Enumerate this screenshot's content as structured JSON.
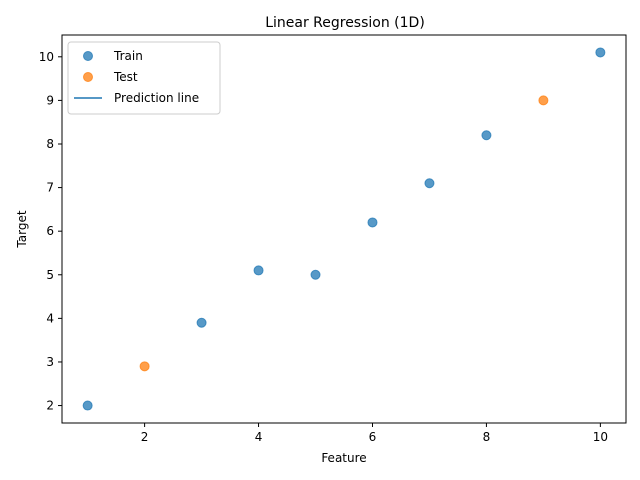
{
  "chart_data": {
    "type": "scatter",
    "title": "Linear Regression (1D)",
    "xlabel": "Feature",
    "ylabel": "Target",
    "xlim": [
      0.55,
      10.45
    ],
    "ylim": [
      1.6,
      10.5
    ],
    "xticks": [
      2,
      4,
      6,
      8,
      10
    ],
    "yticks": [
      2,
      3,
      4,
      5,
      6,
      7,
      8,
      9,
      10
    ],
    "grid": false,
    "legend_position": "top-left",
    "series": [
      {
        "name": "Train",
        "kind": "scatter",
        "color": "#1f77b4",
        "points": [
          {
            "x": 1,
            "y": 2.0
          },
          {
            "x": 3,
            "y": 3.9
          },
          {
            "x": 4,
            "y": 5.1
          },
          {
            "x": 5,
            "y": 5.0
          },
          {
            "x": 6,
            "y": 6.2
          },
          {
            "x": 7,
            "y": 7.1
          },
          {
            "x": 8,
            "y": 8.2
          },
          {
            "x": 10,
            "y": 10.1
          }
        ]
      },
      {
        "name": "Test",
        "kind": "scatter",
        "color": "#ff7f0e",
        "points": [
          {
            "x": 2,
            "y": 2.9
          },
          {
            "x": 9,
            "y": 9.0
          }
        ]
      },
      {
        "name": "Prediction line",
        "kind": "line",
        "color": "#1f77b4",
        "points": []
      }
    ]
  }
}
